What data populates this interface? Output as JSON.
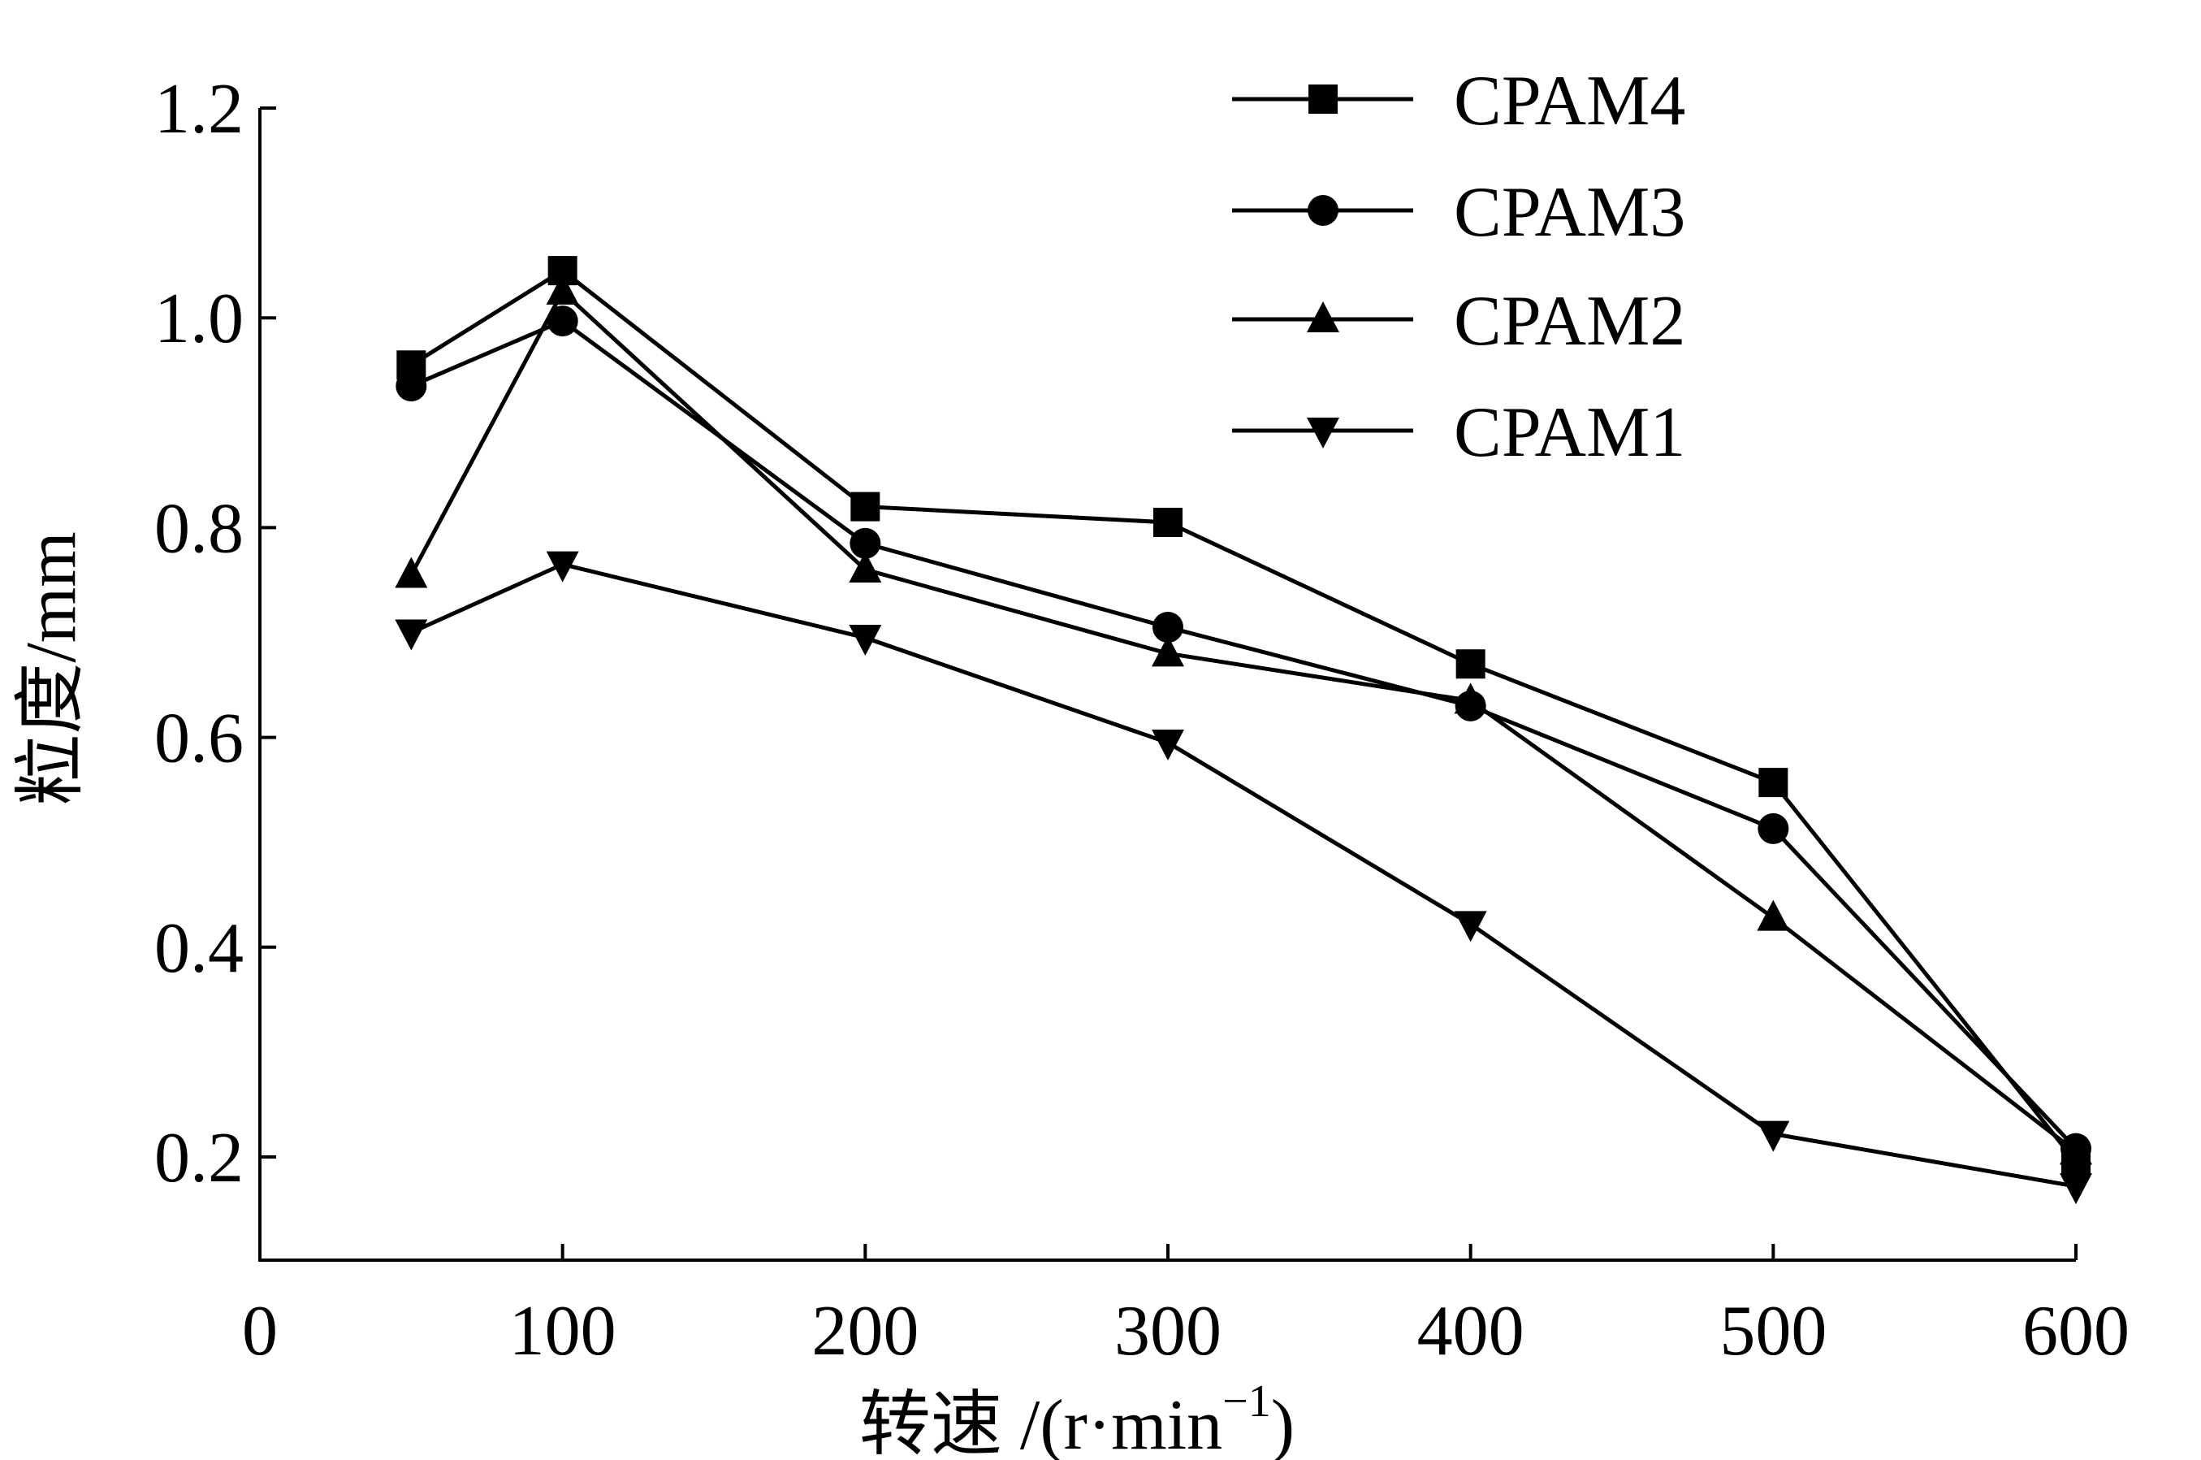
{
  "chart_data": {
    "type": "line",
    "xlabel_main": "转速 /(r·min",
    "xlabel_sup": "−1",
    "xlabel_close": ")",
    "ylabel": "粒度/mm",
    "xlim": [
      0,
      600
    ],
    "ylim": [
      0.1,
      1.2
    ],
    "xticks": [
      0,
      100,
      200,
      300,
      400,
      500,
      600
    ],
    "xtick_labels": [
      "0",
      "100",
      "200",
      "300",
      "400",
      "500",
      "600"
    ],
    "yticks": [
      0.2,
      0.4,
      0.6,
      0.8,
      1.0,
      1.2
    ],
    "ytick_labels": [
      "0.2",
      "0.4",
      "0.6",
      "0.8",
      "1.0",
      "1.2"
    ],
    "grid": false,
    "legend_position": "top-right",
    "x": [
      50,
      100,
      200,
      300,
      400,
      500,
      600
    ],
    "series": [
      {
        "name": "CPAM4",
        "marker": "square",
        "values": [
          0.955,
          1.045,
          0.82,
          0.805,
          0.67,
          0.557,
          0.195
        ]
      },
      {
        "name": "CPAM3",
        "marker": "circle",
        "values": [
          0.935,
          0.997,
          0.785,
          0.705,
          0.63,
          0.513,
          0.208
        ]
      },
      {
        "name": "CPAM2",
        "marker": "triangle-up",
        "values": [
          0.755,
          1.025,
          0.76,
          0.68,
          0.635,
          0.428,
          0.205
        ]
      },
      {
        "name": "CPAM1",
        "marker": "triangle-down",
        "values": [
          0.7,
          0.765,
          0.695,
          0.595,
          0.422,
          0.222,
          0.172
        ]
      }
    ]
  }
}
